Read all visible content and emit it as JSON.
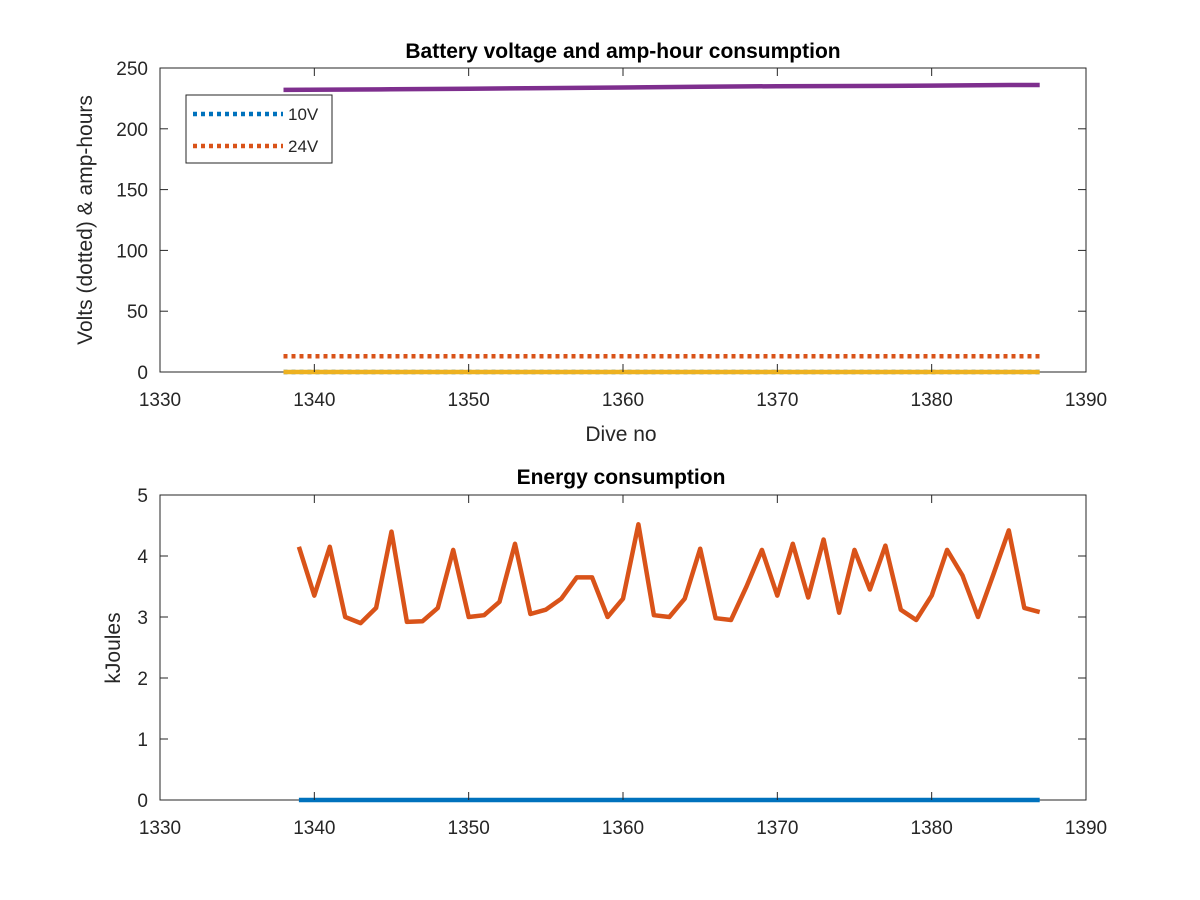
{
  "chart_data": [
    {
      "type": "line",
      "title": "Battery voltage and amp-hour consumption",
      "xlabel": "Dive no",
      "ylabel": "Volts (dotted) & amp-hours",
      "xlim": [
        1330,
        1390
      ],
      "ylim": [
        0,
        250
      ],
      "xticks": [
        "1330",
        "1340",
        "1350",
        "1360",
        "1370",
        "1380",
        "1390"
      ],
      "yticks": [
        "0",
        "50",
        "100",
        "150",
        "200",
        "250"
      ],
      "grid": false,
      "legend_position": "top-left",
      "series": [
        {
          "name": "10V",
          "color": "#0072BD",
          "style": "dotted",
          "x": [
            1338,
            1387
          ],
          "y": [
            0,
            0
          ]
        },
        {
          "name": "24V",
          "color": "#D95319",
          "style": "dotted",
          "x": [
            1338,
            1387
          ],
          "y": [
            13,
            13
          ]
        },
        {
          "color": "#EDB120",
          "style": "solid",
          "x": [
            1338,
            1387
          ],
          "y": [
            0,
            0
          ]
        },
        {
          "color": "#7E2F8E",
          "style": "solid",
          "x": [
            1338,
            1345,
            1350,
            1355,
            1360,
            1365,
            1370,
            1375,
            1380,
            1385,
            1387
          ],
          "y": [
            232,
            232.5,
            233,
            233.5,
            234,
            234.5,
            235,
            235.2,
            235.5,
            236,
            236
          ]
        }
      ]
    },
    {
      "type": "line",
      "title": "Energy consumption",
      "xlabel": "",
      "ylabel": "kJoules",
      "xlim": [
        1330,
        1390
      ],
      "ylim": [
        0,
        5
      ],
      "xticks": [
        "1330",
        "1340",
        "1350",
        "1360",
        "1370",
        "1380",
        "1390"
      ],
      "yticks": [
        "0",
        "1",
        "2",
        "3",
        "4",
        "5"
      ],
      "grid": false,
      "series": [
        {
          "color": "#0072BD",
          "style": "solid",
          "x": [
            1339,
            1387
          ],
          "y": [
            0,
            0
          ]
        },
        {
          "color": "#D95319",
          "style": "solid",
          "x": [
            1339,
            1340,
            1341,
            1342,
            1343,
            1344,
            1345,
            1346,
            1347,
            1348,
            1349,
            1350,
            1351,
            1352,
            1353,
            1354,
            1355,
            1356,
            1357,
            1358,
            1359,
            1360,
            1361,
            1362,
            1363,
            1364,
            1365,
            1366,
            1367,
            1368,
            1369,
            1370,
            1371,
            1372,
            1373,
            1374,
            1375,
            1376,
            1377,
            1378,
            1379,
            1380,
            1381,
            1382,
            1383,
            1384,
            1385,
            1386,
            1387
          ],
          "y": [
            4.15,
            3.35,
            4.15,
            3.0,
            2.9,
            3.15,
            4.4,
            2.92,
            2.93,
            3.15,
            4.1,
            3.0,
            3.03,
            3.25,
            4.2,
            3.05,
            3.12,
            3.3,
            3.65,
            3.65,
            3.0,
            3.3,
            4.52,
            3.03,
            3.0,
            3.3,
            4.12,
            2.98,
            2.95,
            3.5,
            4.1,
            3.35,
            4.2,
            3.32,
            4.27,
            3.07,
            4.1,
            3.45,
            4.17,
            3.12,
            2.95,
            3.35,
            4.1,
            3.68,
            3.0,
            3.7,
            4.42,
            3.15,
            3.08
          ]
        }
      ]
    }
  ]
}
